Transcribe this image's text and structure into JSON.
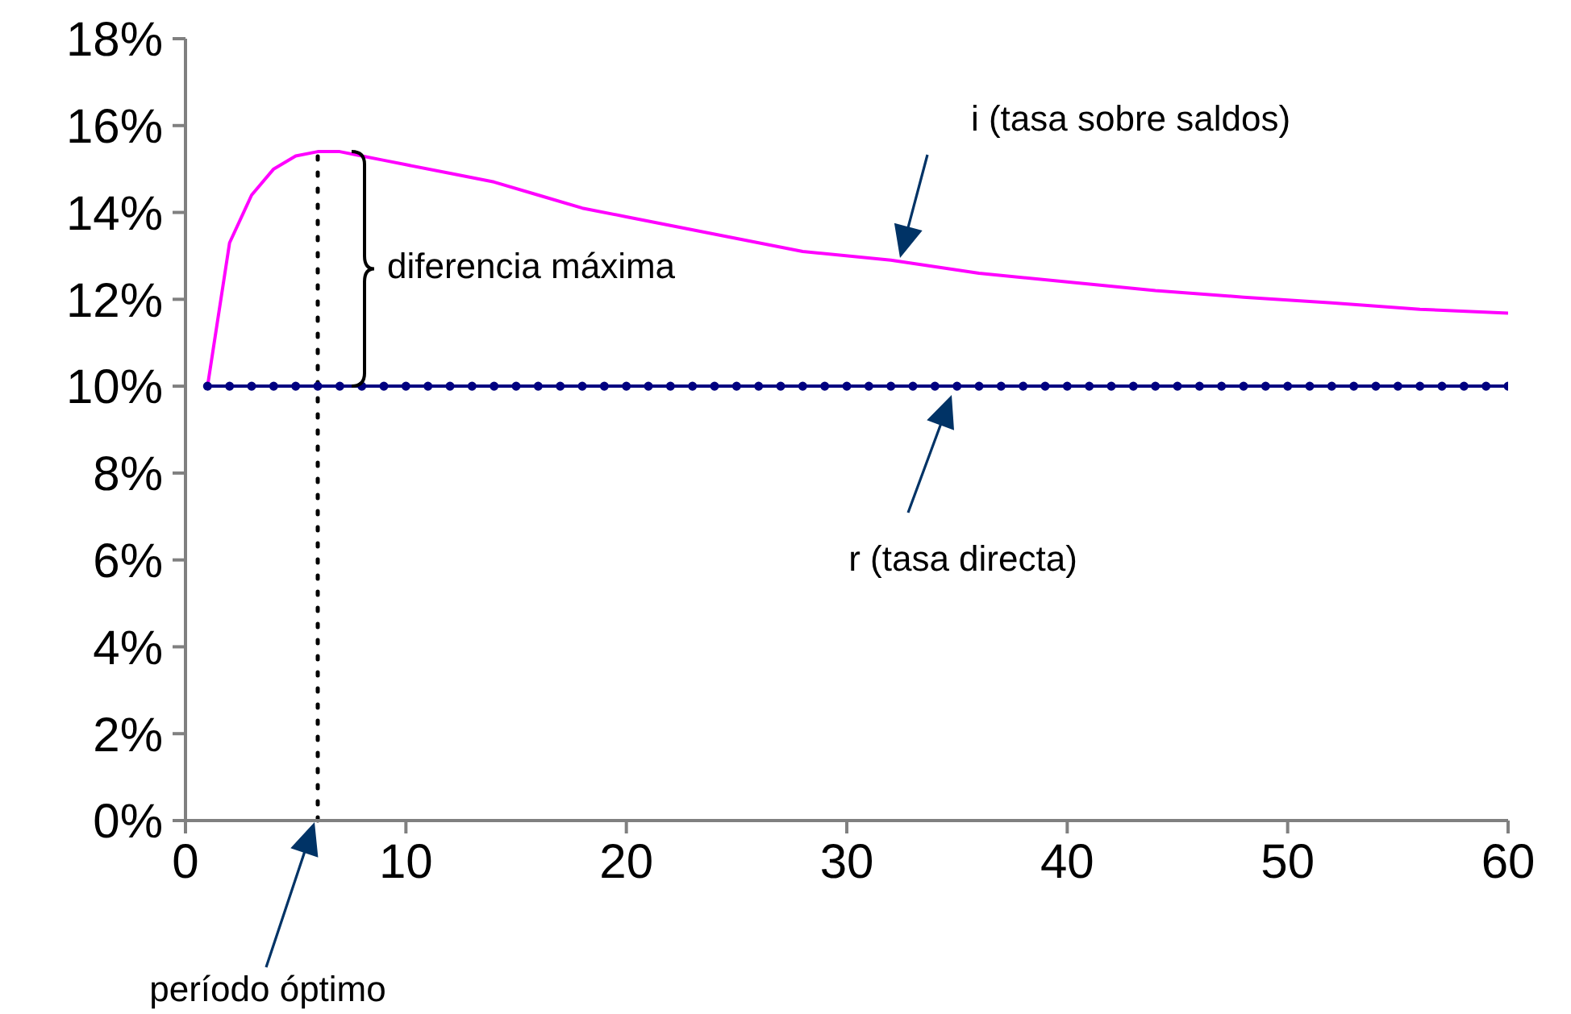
{
  "chart_data": {
    "type": "line",
    "legend": false,
    "grid": false,
    "xlim": [
      0,
      60
    ],
    "xticks": [
      0,
      10,
      20,
      30,
      40,
      50,
      60
    ],
    "ylim": [
      0,
      18
    ],
    "yticks": [
      {
        "value": 0,
        "label": "0%"
      },
      {
        "value": 2,
        "label": "2%"
      },
      {
        "value": 4,
        "label": "4%"
      },
      {
        "value": 6,
        "label": "6%"
      },
      {
        "value": 8,
        "label": "8%"
      },
      {
        "value": 10,
        "label": "10%"
      },
      {
        "value": 12,
        "label": "12%"
      },
      {
        "value": 14,
        "label": "14%"
      },
      {
        "value": 16,
        "label": "16%"
      },
      {
        "value": 18,
        "label": "18%"
      }
    ],
    "series": [
      {
        "color": "#ff00ff",
        "marker": "none",
        "line_style": "solid",
        "x": [
          1,
          2,
          3,
          4,
          5,
          6,
          7,
          8,
          9,
          10,
          12,
          14,
          16,
          18,
          20,
          24,
          28,
          32,
          36,
          40,
          44,
          48,
          52,
          56,
          60
        ],
        "values": [
          10,
          13.3,
          14.4,
          15.0,
          15.3,
          15.4,
          15.4,
          15.3,
          15.2,
          15.1,
          14.9,
          14.7,
          14.4,
          14.1,
          13.9,
          13.5,
          13.1,
          12.9,
          12.6,
          12.4,
          12.2,
          12.05,
          11.92,
          11.77,
          11.68
        ]
      },
      {
        "color": "#000080",
        "marker": "circle",
        "line_style": "solid",
        "x": [
          1,
          2,
          3,
          4,
          5,
          6,
          7,
          8,
          9,
          10,
          11,
          12,
          13,
          14,
          15,
          16,
          17,
          18,
          19,
          20,
          21,
          22,
          23,
          24,
          25,
          26,
          27,
          28,
          29,
          30,
          31,
          32,
          33,
          34,
          35,
          36,
          37,
          38,
          39,
          40,
          41,
          42,
          43,
          44,
          45,
          46,
          47,
          48,
          49,
          50,
          51,
          52,
          53,
          54,
          55,
          56,
          57,
          58,
          59,
          60
        ],
        "values": [
          10,
          10,
          10,
          10,
          10,
          10,
          10,
          10,
          10,
          10,
          10,
          10,
          10,
          10,
          10,
          10,
          10,
          10,
          10,
          10,
          10,
          10,
          10,
          10,
          10,
          10,
          10,
          10,
          10,
          10,
          10,
          10,
          10,
          10,
          10,
          10,
          10,
          10,
          10,
          10,
          10,
          10,
          10,
          10,
          10,
          10,
          10,
          10,
          10,
          10,
          10,
          10,
          10,
          10,
          10,
          10,
          10,
          10,
          10,
          10
        ]
      }
    ],
    "ref_lines": [
      {
        "axis": "x",
        "value": 6,
        "color": "#000000",
        "line_style": "dotted"
      }
    ],
    "annotations": [
      "i (tasa sobre saldos)",
      "r (tasa directa)",
      "diferencia máxima",
      "período óptimo"
    ]
  }
}
